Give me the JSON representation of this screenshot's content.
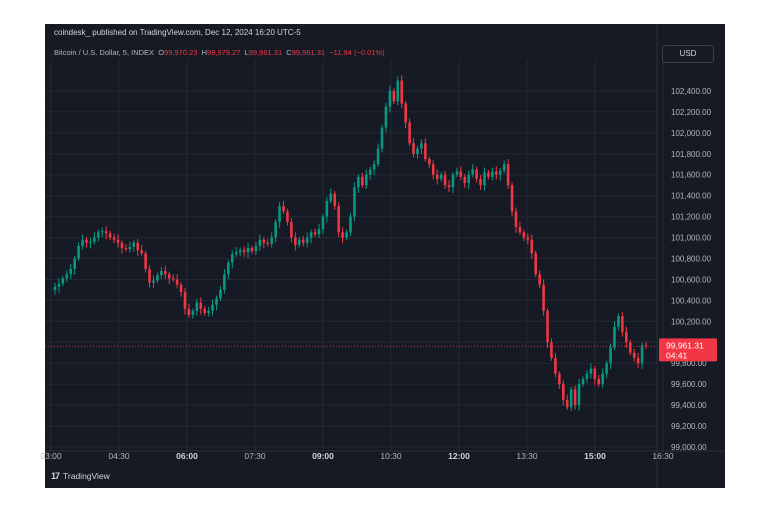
{
  "header": {
    "text": "coindesk_ published on TradingView.com, Dec 12, 2024 16:20 UTC-5"
  },
  "legend": {
    "symbol": "Bitcoin / U.S. Dollar, 5, INDEX",
    "o_label": "O",
    "o_value": "99,970.23",
    "h_label": "H",
    "h_value": "99,979.27",
    "l_label": "L",
    "l_value": "99,961.31",
    "c_label": "C",
    "c_value": "99,961.31",
    "change": "−11.94 (−0.01%)"
  },
  "currency": "USD",
  "price_tag": {
    "price": "99,961.31",
    "countdown": "04:41"
  },
  "footer": {
    "logo_mark": "17",
    "brand": "TradingView"
  },
  "colors": {
    "up": "#089981",
    "down": "#f23645",
    "background": "#161a25",
    "grid": "#242833",
    "axis_text": "#b2b5be"
  },
  "chart_data": {
    "type": "candlestick",
    "interval": "5",
    "ylim": [
      99000,
      102600
    ],
    "last_price": 99961.31,
    "y_ticks": [
      "102,400.00",
      "102,200.00",
      "102,000.00",
      "101,800.00",
      "101,600.00",
      "101,400.00",
      "101,200.00",
      "101,000.00",
      "100,800.00",
      "100,600.00",
      "100,400.00",
      "100,200.00",
      "100,000.00",
      "99,800.00",
      "99,600.00",
      "99,400.00",
      "99,200.00",
      "99,000.00"
    ],
    "x_ticks": [
      {
        "label": "03:00",
        "bold": false
      },
      {
        "label": "04:30",
        "bold": false
      },
      {
        "label": "06:00",
        "bold": true
      },
      {
        "label": "07:30",
        "bold": false
      },
      {
        "label": "09:00",
        "bold": true
      },
      {
        "label": "10:30",
        "bold": false
      },
      {
        "label": "12:00",
        "bold": true
      },
      {
        "label": "13:30",
        "bold": false
      },
      {
        "label": "15:00",
        "bold": true
      },
      {
        "label": "16:30",
        "bold": false
      }
    ],
    "price_path": [
      100500,
      100530,
      100560,
      100610,
      100650,
      100700,
      100800,
      100920,
      100980,
      100950,
      100960,
      101000,
      101050,
      101060,
      101040,
      101000,
      100980,
      100950,
      100900,
      100890,
      100910,
      100950,
      100880,
      100850,
      100700,
      100570,
      100590,
      100640,
      100680,
      100650,
      100610,
      100600,
      100550,
      100480,
      100320,
      100260,
      100300,
      100380,
      100320,
      100280,
      100300,
      100360,
      100420,
      100500,
      100650,
      100760,
      100840,
      100860,
      100880,
      100860,
      100900,
      100870,
      100920,
      100980,
      100950,
      100940,
      101000,
      101150,
      101300,
      101250,
      101150,
      101000,
      100930,
      100980,
      100950,
      101000,
      101050,
      101030,
      101080,
      101200,
      101350,
      101420,
      101300,
      101050,
      101000,
      101050,
      101200,
      101480,
      101580,
      101500,
      101600,
      101650,
      101700,
      101850,
      102050,
      102250,
      102400,
      102300,
      102500,
      102280,
      102100,
      101900,
      101800,
      101850,
      101900,
      101750,
      101700,
      101600,
      101560,
      101600,
      101500,
      101480,
      101600,
      101630,
      101580,
      101520,
      101600,
      101650,
      101560,
      101500,
      101620,
      101580,
      101630,
      101600,
      101640,
      101700,
      101500,
      101250,
      101100,
      101050,
      101000,
      100980,
      100850,
      100650,
      100550,
      100300,
      100000,
      99850,
      99700,
      99600,
      99450,
      99380,
      99550,
      99400,
      99600,
      99650,
      99700,
      99750,
      99650,
      99600,
      99700,
      99800,
      99950,
      100150,
      100250,
      100100,
      100000,
      99900,
      99850,
      99800,
      99970,
      99961
    ]
  }
}
